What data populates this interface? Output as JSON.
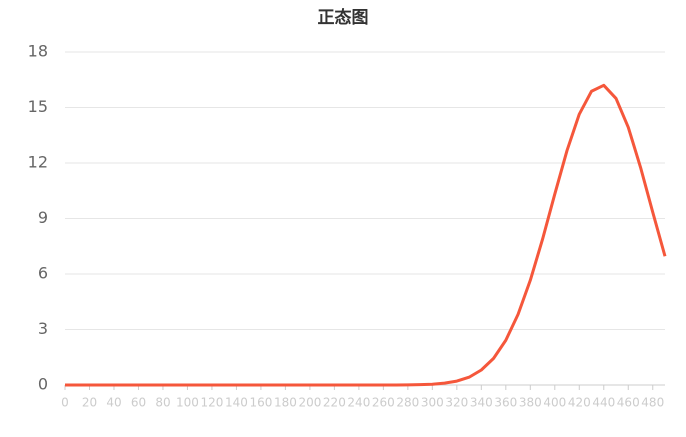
{
  "chart_data": {
    "type": "line",
    "title": "正态图",
    "x": [
      0,
      10,
      20,
      30,
      40,
      50,
      60,
      70,
      80,
      90,
      100,
      110,
      120,
      130,
      140,
      150,
      160,
      170,
      180,
      190,
      200,
      210,
      220,
      230,
      240,
      250,
      260,
      270,
      280,
      290,
      300,
      310,
      320,
      330,
      340,
      350,
      360,
      370,
      380,
      390,
      400,
      410,
      420,
      430,
      440,
      450,
      460,
      470,
      480,
      490
    ],
    "series": [
      {
        "name": "正态",
        "color": "#f5573b",
        "values": [
          0,
          0,
          0,
          0,
          0,
          0,
          0,
          0,
          0,
          0,
          0,
          0,
          0,
          0,
          0,
          0,
          0,
          0,
          0,
          0,
          0,
          0,
          0,
          0,
          0,
          0,
          0,
          0,
          0.01,
          0.02,
          0.04,
          0.1,
          0.21,
          0.42,
          0.81,
          1.44,
          2.42,
          3.82,
          5.66,
          7.88,
          10.32,
          12.68,
          14.64,
          15.88,
          16.2,
          15.49,
          13.93,
          11.77,
          9.34,
          6.96
        ]
      }
    ],
    "xlim": [
      0,
      490
    ],
    "xticks": [
      0,
      20,
      40,
      60,
      80,
      100,
      120,
      140,
      160,
      180,
      200,
      220,
      240,
      260,
      280,
      300,
      320,
      340,
      360,
      380,
      400,
      420,
      440,
      460,
      480
    ],
    "ylim": [
      0,
      18
    ],
    "yticks": [
      0,
      3,
      6,
      9,
      12,
      15,
      18
    ],
    "grid": true
  }
}
